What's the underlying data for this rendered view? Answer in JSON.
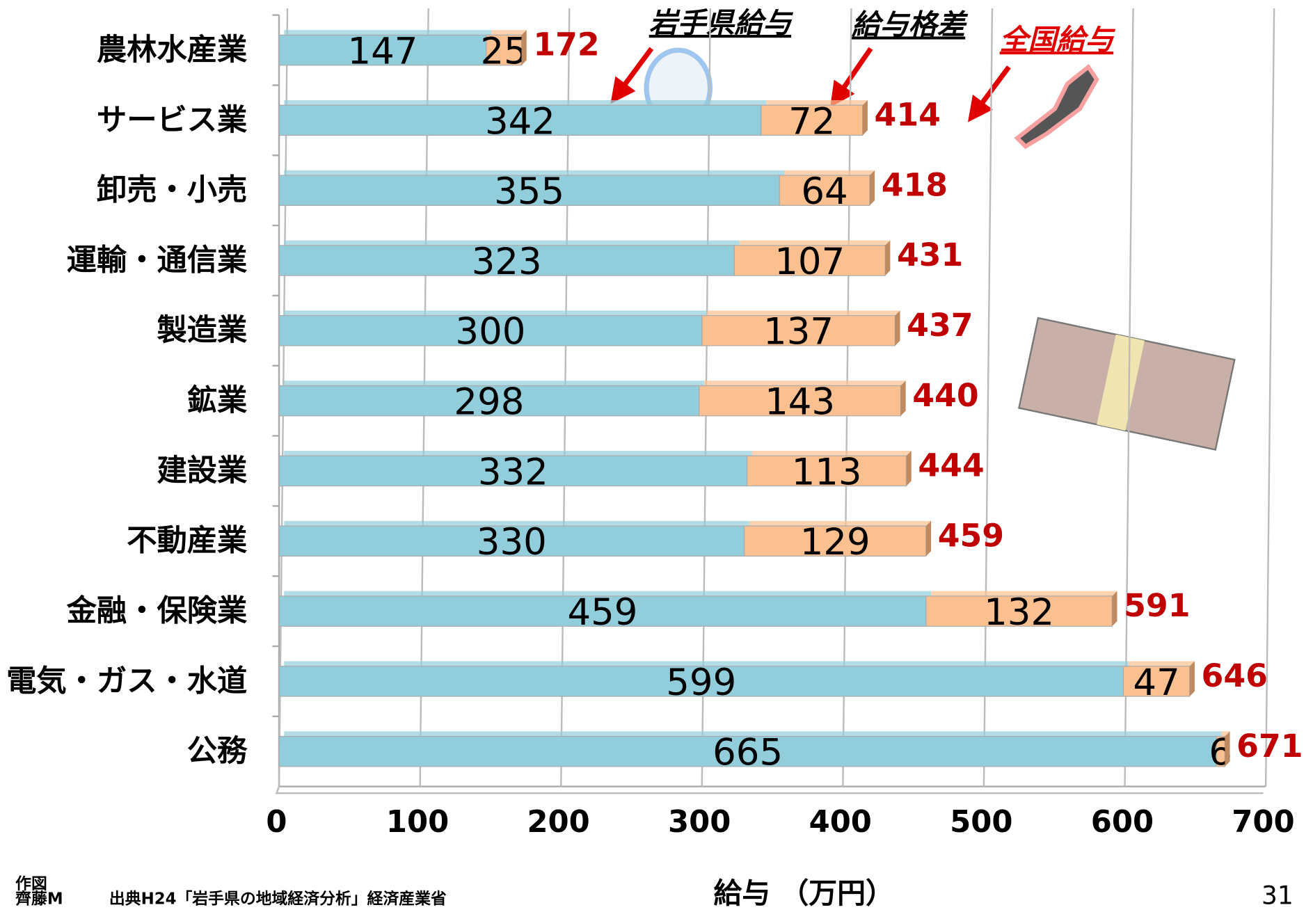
{
  "chart_data": {
    "type": "stacked-bar-horizontal",
    "categories": [
      "農林水産業",
      "サービス業",
      "卸売・小売",
      "運輸・通信業",
      "製造業",
      "鉱業",
      "建設業",
      "不動産業",
      "金融・保険業",
      "電気・ガス・水道",
      "公務"
    ],
    "series": [
      {
        "name": "岩手県給与",
        "color": "#92cddc",
        "values": [
          147,
          342,
          355,
          323,
          300,
          298,
          332,
          330,
          459,
          599,
          665
        ]
      },
      {
        "name": "給与格差",
        "color": "#fac090",
        "values": [
          25,
          72,
          64,
          107,
          137,
          143,
          113,
          129,
          132,
          47,
          6
        ]
      }
    ],
    "totals_name": "全国給与",
    "totals_color": "#c00000",
    "totals": [
      172,
      414,
      418,
      431,
      437,
      440,
      444,
      459,
      591,
      646,
      671
    ],
    "x_label": "給与 （万円）",
    "xlim": [
      0,
      700
    ],
    "xticks": [
      0,
      100,
      200,
      300,
      400,
      500,
      600,
      700
    ],
    "grid": true
  },
  "footer": {
    "author_label": "作図",
    "author": "齊藤M",
    "source": "出典H24「岩手県の地域経済分析」経済産業省",
    "page": "31"
  }
}
